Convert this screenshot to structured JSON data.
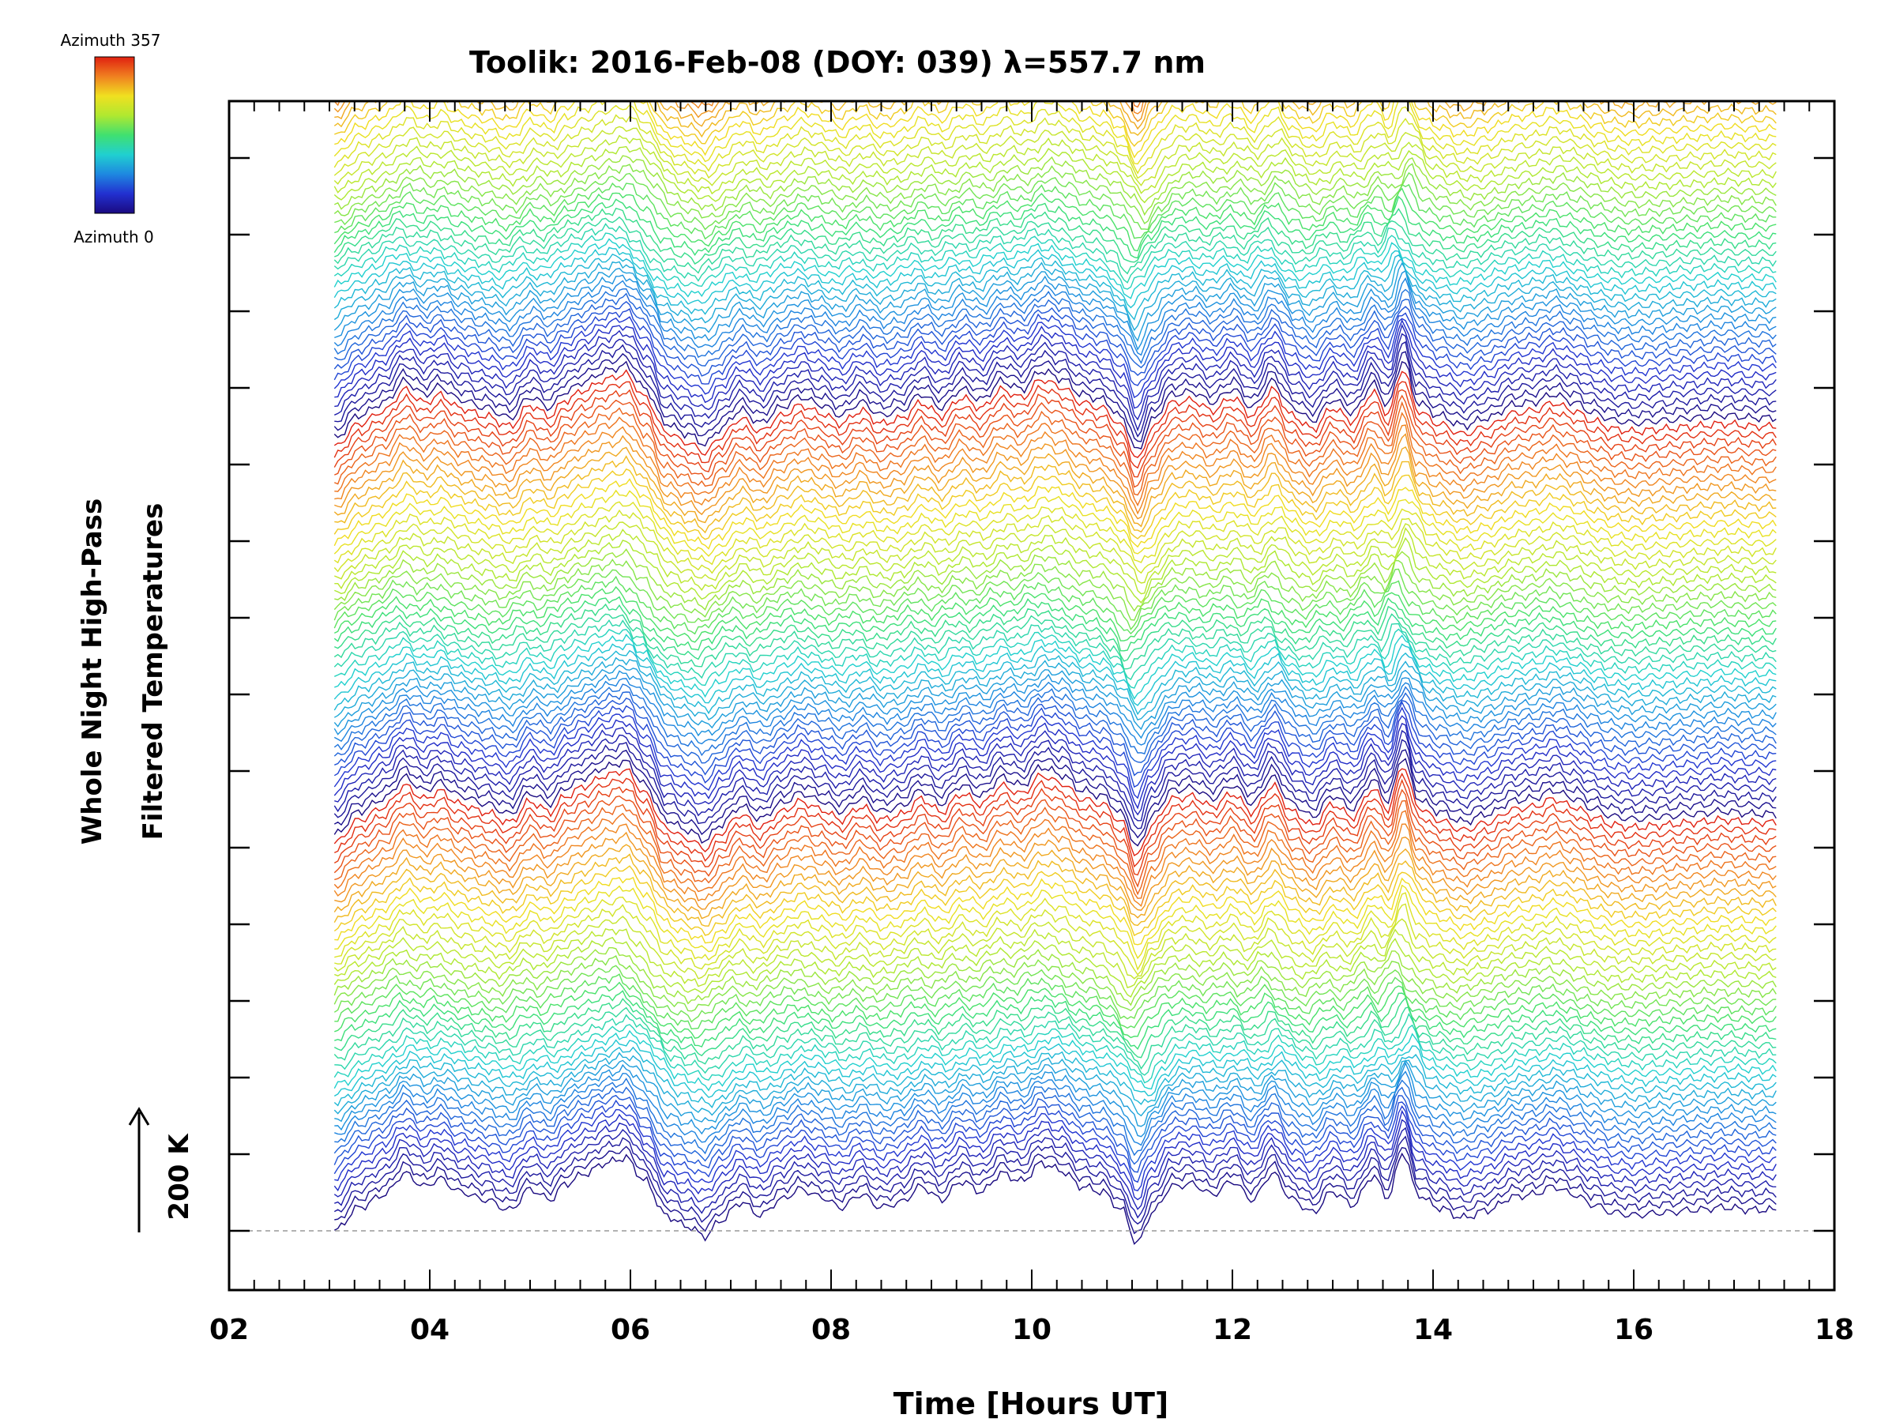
{
  "chart_data": {
    "type": "line",
    "title": "Toolik: 2016-Feb-08 (DOY: 039) λ=557.7 nm",
    "xlabel": "Time [Hours UT]",
    "ylabel_line1": "Whole Night High-Pass",
    "ylabel_line2": "Filtered Temperatures",
    "xlim": [
      2,
      18
    ],
    "x_tick_labels": [
      "02",
      "04",
      "06",
      "08",
      "10",
      "12",
      "14",
      "16",
      "18"
    ],
    "x_ticks": [
      2,
      4,
      6,
      8,
      10,
      12,
      14,
      16,
      18
    ],
    "time_range": [
      3.05,
      17.42
    ],
    "scale_bar_label": "200 K",
    "colorbar": {
      "top_label": "Azimuth 357",
      "bottom_label": "Azimuth 0",
      "colormap": [
        "#1a0a80",
        "#2230d0",
        "#1e88e0",
        "#20d0d0",
        "#40e070",
        "#b0e830",
        "#f0e020",
        "#f08020",
        "#e02010"
      ]
    },
    "series_count": 138,
    "azimuth_range": [
      0,
      357
    ],
    "baseline_color": "#999999",
    "profile_knots": {
      "x": [
        3.05,
        3.3,
        3.55,
        3.75,
        3.95,
        4.1,
        4.3,
        4.55,
        4.8,
        5.0,
        5.2,
        5.35,
        5.55,
        5.75,
        5.95,
        6.15,
        6.35,
        6.55,
        6.75,
        6.9,
        7.1,
        7.3,
        7.5,
        7.7,
        7.9,
        8.1,
        8.3,
        8.5,
        8.7,
        8.9,
        9.1,
        9.3,
        9.5,
        9.7,
        9.9,
        10.1,
        10.3,
        10.5,
        10.7,
        10.9,
        11.05,
        11.2,
        11.4,
        11.6,
        11.8,
        12.0,
        12.2,
        12.4,
        12.6,
        12.8,
        13.0,
        13.2,
        13.4,
        13.55,
        13.7,
        13.85,
        14.05,
        14.3,
        14.55,
        14.8,
        15.0,
        15.2,
        15.4,
        15.6,
        15.8,
        16.0,
        16.3,
        16.6,
        16.9,
        17.2,
        17.42
      ],
      "y": [
        0,
        45,
        70,
        110,
        85,
        100,
        75,
        60,
        40,
        80,
        60,
        90,
        110,
        130,
        140,
        95,
        30,
        10,
        -10,
        20,
        55,
        30,
        60,
        80,
        65,
        45,
        70,
        45,
        55,
        85,
        60,
        95,
        75,
        110,
        95,
        130,
        115,
        85,
        75,
        40,
        -25,
        35,
        85,
        90,
        70,
        95,
        60,
        110,
        60,
        35,
        75,
        50,
        105,
        65,
        150,
        70,
        45,
        25,
        40,
        65,
        70,
        85,
        70,
        50,
        35,
        30,
        35,
        40,
        45,
        40,
        40
      ]
    },
    "pixels_per_200K": 58
  }
}
